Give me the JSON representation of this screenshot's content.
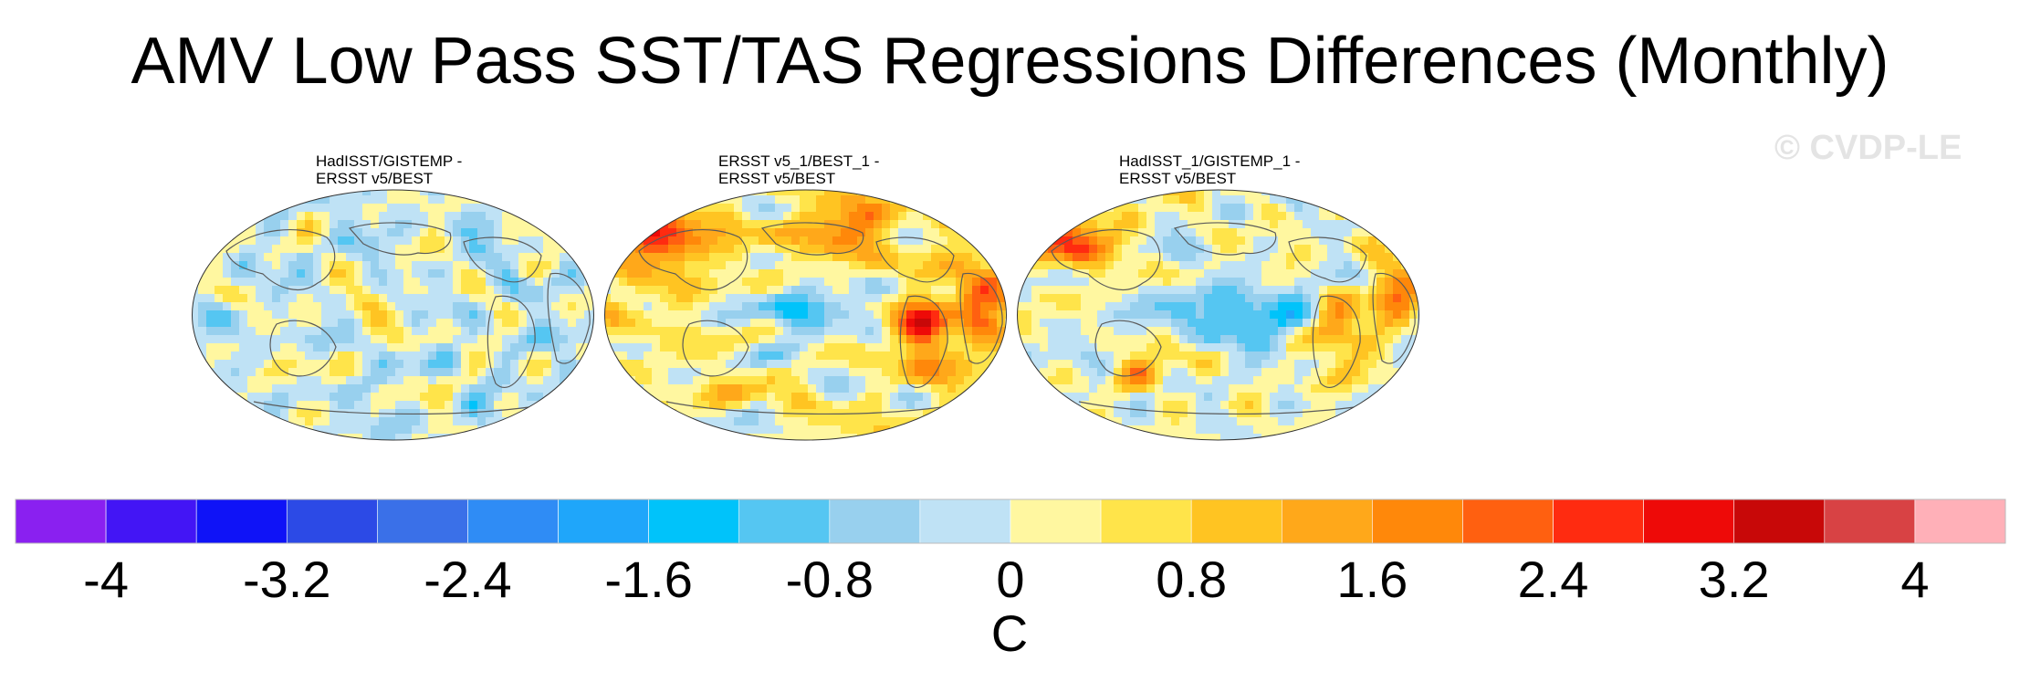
{
  "title": "AMV Low Pass SST/TAS Regressions Differences (Monthly)",
  "watermark": "© CVDP-LE",
  "panels": [
    {
      "line1": "HadISST/GISTEMP -",
      "line2": "ERSST v5/BEST",
      "bias": "neutral"
    },
    {
      "line1": "ERSST v5_1/BEST_1 -",
      "line2": "ERSST v5/BEST",
      "bias": "warm"
    },
    {
      "line1": "HadISST_1/GISTEMP_1 -",
      "line2": "ERSST v5/BEST",
      "bias": "mixed"
    }
  ],
  "chart_data": {
    "type": "heatmap",
    "title": "AMV Low Pass SST/TAS Regressions Differences (Monthly)",
    "colorbar": {
      "unit": "C",
      "range": [
        -4.4,
        4.4
      ],
      "boundaries": [
        -4.4,
        -4,
        -3.6,
        -3.2,
        -2.8,
        -2.4,
        -2,
        -1.6,
        -1.2,
        -0.8,
        -0.4,
        0,
        0.4,
        0.8,
        1.2,
        1.6,
        2,
        2.4,
        2.8,
        3.2,
        3.6,
        4,
        4.4
      ],
      "colors": [
        "#8a20f0",
        "#4315f5",
        "#0f13f7",
        "#2c4ae6",
        "#3a70e8",
        "#2f8cf5",
        "#1fa6fa",
        "#00c3fa",
        "#55c6f2",
        "#98d0ee",
        "#bfe2f5",
        "#fff7a0",
        "#ffe44a",
        "#ffc422",
        "#ffa81a",
        "#ff880a",
        "#ff6010",
        "#ff2b10",
        "#ee0a08",
        "#c80808",
        "#d84244",
        "#ffb0b8"
      ],
      "tick_values": [
        -4,
        -3.2,
        -2.4,
        -1.6,
        -0.8,
        0,
        0.8,
        1.6,
        2.4,
        3.2,
        4
      ],
      "tick_labels": [
        "-4",
        "-3.2",
        "-2.4",
        "-1.6",
        "-0.8",
        "0",
        "0.8",
        "1.6",
        "2.4",
        "3.2",
        "4"
      ]
    }
  }
}
